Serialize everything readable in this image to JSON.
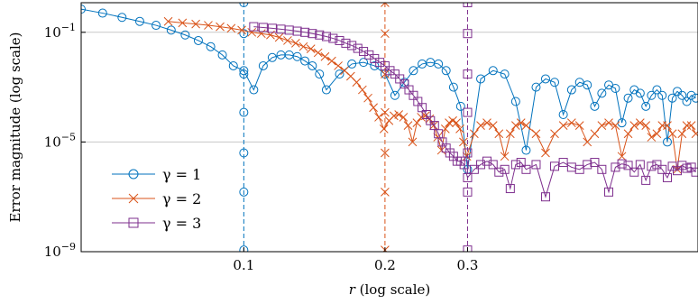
{
  "chart_data": {
    "type": "line",
    "title": "",
    "xlabel": "r (log scale)",
    "ylabel": "Error magnitude (log scale)",
    "xscale": "log",
    "yscale": "log",
    "xlim": [
      0.045,
      0.93
    ],
    "ylim": [
      1e-09,
      1.2
    ],
    "xticks": [
      {
        "value": 0.1,
        "label": "0.1"
      },
      {
        "value": 0.2,
        "label": "0.2"
      },
      {
        "value": 0.3,
        "label": "0.3"
      }
    ],
    "yticks": [
      {
        "value": 1e-09,
        "base": "10",
        "exp": "−9"
      },
      {
        "value": 1e-05,
        "base": "10",
        "exp": "−5"
      },
      {
        "value": 0.1,
        "base": "10",
        "exp": "−1"
      }
    ],
    "grid": "horizontal at y ticks",
    "legend_position": "lower-left",
    "series": [
      {
        "name": "γ = 1",
        "color": "#0072BD",
        "marker": "circle",
        "cutoff": 0.1,
        "x": [
          0.045,
          0.05,
          0.055,
          0.06,
          0.065,
          0.07,
          0.075,
          0.08,
          0.085,
          0.09,
          0.095,
          0.1,
          0.105,
          0.11,
          0.115,
          0.12,
          0.125,
          0.13,
          0.135,
          0.14,
          0.145,
          0.15,
          0.16,
          0.17,
          0.18,
          0.19,
          0.2,
          0.21,
          0.22,
          0.23,
          0.24,
          0.25,
          0.26,
          0.27,
          0.28,
          0.29,
          0.3,
          0.32,
          0.34,
          0.36,
          0.38,
          0.4,
          0.42,
          0.44,
          0.46,
          0.48,
          0.5,
          0.52,
          0.54,
          0.56,
          0.58,
          0.6,
          0.62,
          0.64,
          0.66,
          0.68,
          0.7,
          0.72,
          0.74,
          0.76,
          0.78,
          0.8,
          0.82,
          0.84,
          0.86,
          0.88,
          0.9,
          0.92
        ],
        "y": [
          0.7,
          0.5,
          0.35,
          0.25,
          0.18,
          0.12,
          0.08,
          0.05,
          0.03,
          0.015,
          0.006,
          0.004,
          0.0008,
          0.006,
          0.012,
          0.015,
          0.015,
          0.013,
          0.009,
          0.006,
          0.003,
          0.0008,
          0.003,
          0.007,
          0.008,
          0.006,
          0.003,
          0.0005,
          0.0015,
          0.004,
          0.007,
          0.008,
          0.007,
          0.004,
          0.001,
          0.0002,
          1e-06,
          0.002,
          0.004,
          0.003,
          0.0003,
          5e-06,
          0.001,
          0.002,
          0.0015,
          0.0001,
          0.0008,
          0.0015,
          0.0012,
          0.0002,
          0.0006,
          0.0012,
          0.0009,
          5e-05,
          0.0004,
          0.0008,
          0.0006,
          0.0002,
          0.0005,
          0.0008,
          0.0005,
          1e-05,
          0.0004,
          0.0007,
          0.0005,
          0.0003,
          0.0005,
          0.0004
        ],
        "vline_markers": [
          1.2,
          0.09,
          0.003,
          0.00012,
          4e-06,
          1.5e-07,
          1.15e-09
        ]
      },
      {
        "name": "γ = 2",
        "color": "#D95319",
        "marker": "x",
        "cutoff": 0.2,
        "x": [
          0.069,
          0.074,
          0.079,
          0.084,
          0.089,
          0.094,
          0.099,
          0.104,
          0.109,
          0.114,
          0.119,
          0.124,
          0.129,
          0.134,
          0.139,
          0.144,
          0.149,
          0.154,
          0.159,
          0.164,
          0.169,
          0.174,
          0.179,
          0.184,
          0.189,
          0.194,
          0.199,
          0.204,
          0.209,
          0.214,
          0.219,
          0.224,
          0.229,
          0.234,
          0.239,
          0.244,
          0.249,
          0.254,
          0.259,
          0.264,
          0.269,
          0.274,
          0.279,
          0.284,
          0.289,
          0.294,
          0.299,
          0.31,
          0.32,
          0.33,
          0.34,
          0.35,
          0.36,
          0.37,
          0.38,
          0.39,
          0.4,
          0.42,
          0.44,
          0.46,
          0.48,
          0.5,
          0.52,
          0.54,
          0.56,
          0.58,
          0.6,
          0.62,
          0.64,
          0.66,
          0.68,
          0.7,
          0.72,
          0.74,
          0.76,
          0.78,
          0.8,
          0.82,
          0.84,
          0.86,
          0.88,
          0.9,
          0.92
        ],
        "y": [
          0.25,
          0.22,
          0.2,
          0.18,
          0.16,
          0.14,
          0.12,
          0.1,
          0.09,
          0.08,
          0.065,
          0.05,
          0.04,
          0.03,
          0.025,
          0.018,
          0.013,
          0.009,
          0.006,
          0.004,
          0.0025,
          0.0015,
          0.0008,
          0.0004,
          0.00018,
          8e-05,
          3e-05,
          6e-05,
          9e-05,
          0.0001,
          8e-05,
          4e-05,
          1e-05,
          5e-05,
          8e-05,
          9e-05,
          7e-05,
          4e-05,
          1.5e-05,
          5e-06,
          3e-05,
          5e-05,
          6e-05,
          5e-05,
          3e-05,
          1e-05,
          3e-06,
          2e-05,
          4e-05,
          5e-05,
          4e-05,
          2e-05,
          3e-06,
          2e-05,
          4e-05,
          5e-05,
          4e-05,
          2e-05,
          4e-06,
          2e-05,
          4e-05,
          5e-05,
          4e-05,
          1e-05,
          2e-05,
          4e-05,
          5e-05,
          4e-05,
          3e-06,
          2e-05,
          4e-05,
          5e-05,
          4e-05,
          1.5e-05,
          2e-05,
          4e-05,
          4e-05,
          2e-05,
          1e-06,
          2e-05,
          4e-05,
          4e-05,
          2e-05
        ],
        "vline_markers": [
          1.2,
          0.09,
          0.003,
          0.00012,
          4e-06,
          1.5e-07,
          1.15e-09
        ]
      },
      {
        "name": "γ = 3",
        "color": "#7E2F8E",
        "marker": "square",
        "cutoff": 0.3,
        "x": [
          0.105,
          0.11,
          0.115,
          0.12,
          0.125,
          0.13,
          0.135,
          0.14,
          0.145,
          0.15,
          0.155,
          0.16,
          0.165,
          0.17,
          0.175,
          0.18,
          0.185,
          0.19,
          0.195,
          0.2,
          0.205,
          0.21,
          0.215,
          0.22,
          0.225,
          0.23,
          0.235,
          0.24,
          0.245,
          0.25,
          0.255,
          0.26,
          0.265,
          0.27,
          0.275,
          0.28,
          0.285,
          0.29,
          0.295,
          0.3,
          0.31,
          0.32,
          0.33,
          0.34,
          0.35,
          0.36,
          0.37,
          0.38,
          0.39,
          0.4,
          0.42,
          0.44,
          0.46,
          0.48,
          0.5,
          0.52,
          0.54,
          0.56,
          0.58,
          0.6,
          0.62,
          0.64,
          0.66,
          0.68,
          0.7,
          0.72,
          0.74,
          0.76,
          0.78,
          0.8,
          0.82,
          0.84,
          0.86,
          0.88,
          0.9,
          0.92
        ],
        "y": [
          0.16,
          0.15,
          0.14,
          0.13,
          0.12,
          0.11,
          0.1,
          0.09,
          0.08,
          0.07,
          0.06,
          0.05,
          0.04,
          0.033,
          0.026,
          0.02,
          0.015,
          0.011,
          0.008,
          0.006,
          0.004,
          0.003,
          0.002,
          0.0013,
          0.0008,
          0.0005,
          0.0003,
          0.00018,
          0.0001,
          6e-05,
          4e-05,
          2e-05,
          1e-05,
          6e-06,
          4e-06,
          3e-06,
          2e-06,
          2e-06,
          1.5e-06,
          5e-07,
          1e-06,
          1.5e-06,
          2e-06,
          1.5e-06,
          8e-07,
          1e-06,
          2e-07,
          1.5e-06,
          1.8e-06,
          1e-06,
          1.5e-06,
          1e-07,
          1.3e-06,
          1.8e-06,
          1.2e-06,
          1e-06,
          1.5e-06,
          1.8e-06,
          1e-06,
          1.5e-07,
          1.2e-06,
          1.6e-06,
          1.4e-06,
          8e-07,
          1.5e-06,
          4e-07,
          1.3e-06,
          1.5e-06,
          1e-06,
          5e-07,
          1.3e-06,
          9e-07,
          1.4e-06,
          1.1e-06,
          1.2e-06,
          8e-07
        ],
        "vline_markers": [
          1.2,
          0.09,
          0.003,
          0.00012,
          4e-06,
          1.5e-07,
          1.15e-09
        ]
      }
    ]
  }
}
